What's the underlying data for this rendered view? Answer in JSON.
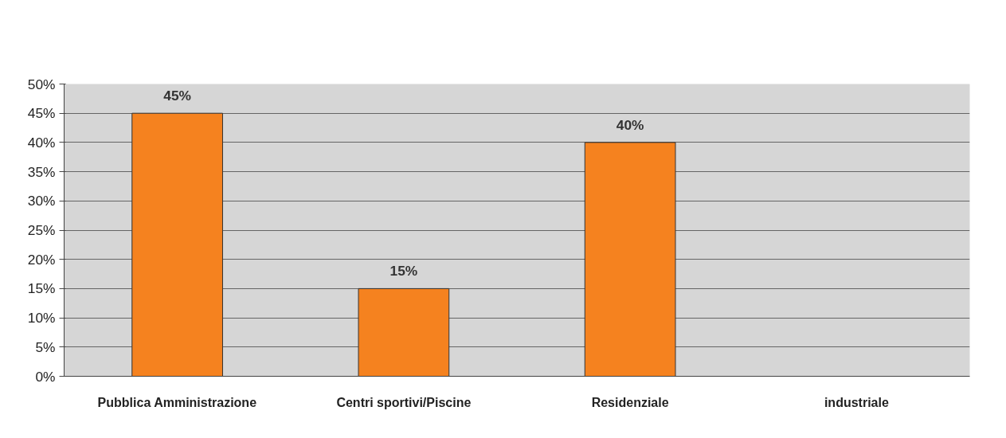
{
  "chart_data": {
    "type": "bar",
    "categories": [
      "Pubblica Amministrazione",
      "Centri sportivi/Piscine",
      "Residenziale",
      "industriale"
    ],
    "values": [
      45,
      15,
      40,
      null
    ],
    "color": "#f5821f",
    "value_labels": [
      "45%",
      "15%",
      "40%",
      null
    ],
    "ylim": [
      0,
      50
    ],
    "yticks": [
      {
        "value": 0,
        "label": "0%"
      },
      {
        "value": 5,
        "label": "5%"
      },
      {
        "value": 10,
        "label": "10%"
      },
      {
        "value": 15,
        "label": "15%"
      },
      {
        "value": 20,
        "label": "20%"
      },
      {
        "value": 25,
        "label": "25%"
      },
      {
        "value": 30,
        "label": "30%"
      },
      {
        "value": 35,
        "label": "35%"
      },
      {
        "value": 40,
        "label": "40%"
      },
      {
        "value": 45,
        "label": "45%"
      },
      {
        "value": 50,
        "label": "50%"
      }
    ],
    "grid": "y"
  }
}
